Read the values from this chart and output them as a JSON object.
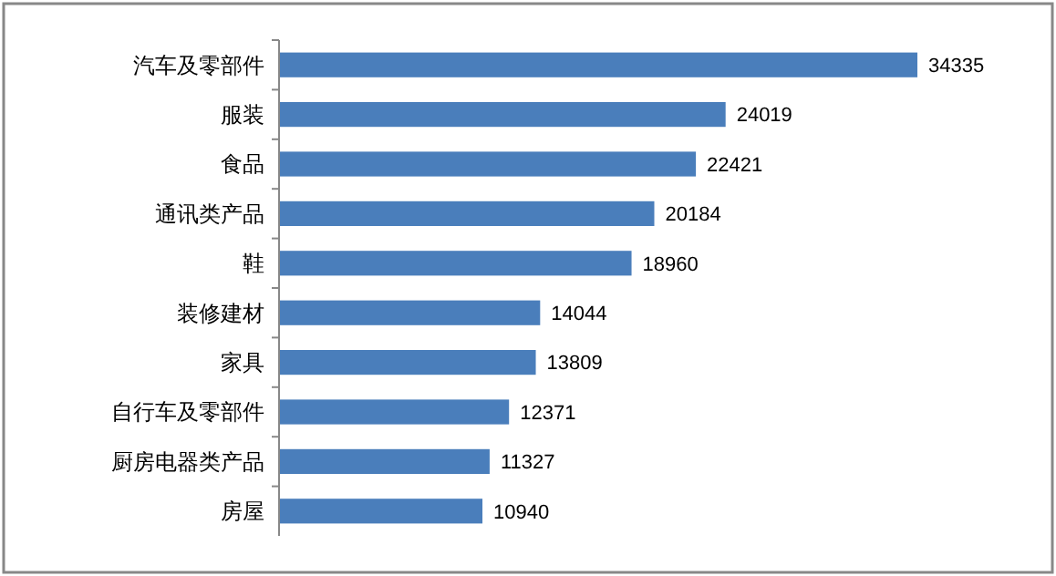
{
  "chart_data": {
    "type": "bar",
    "orientation": "horizontal",
    "categories": [
      "汽车及零部件",
      "服装",
      "食品",
      "通讯类产品",
      "鞋",
      "装修建材",
      "家具",
      "自行车及零部件",
      "厨房电器类产品",
      "房屋"
    ],
    "values": [
      34335,
      24019,
      22421,
      20184,
      18960,
      14044,
      13809,
      12371,
      11327,
      10940
    ],
    "color": "#4a7ebb",
    "data_labels": true
  }
}
